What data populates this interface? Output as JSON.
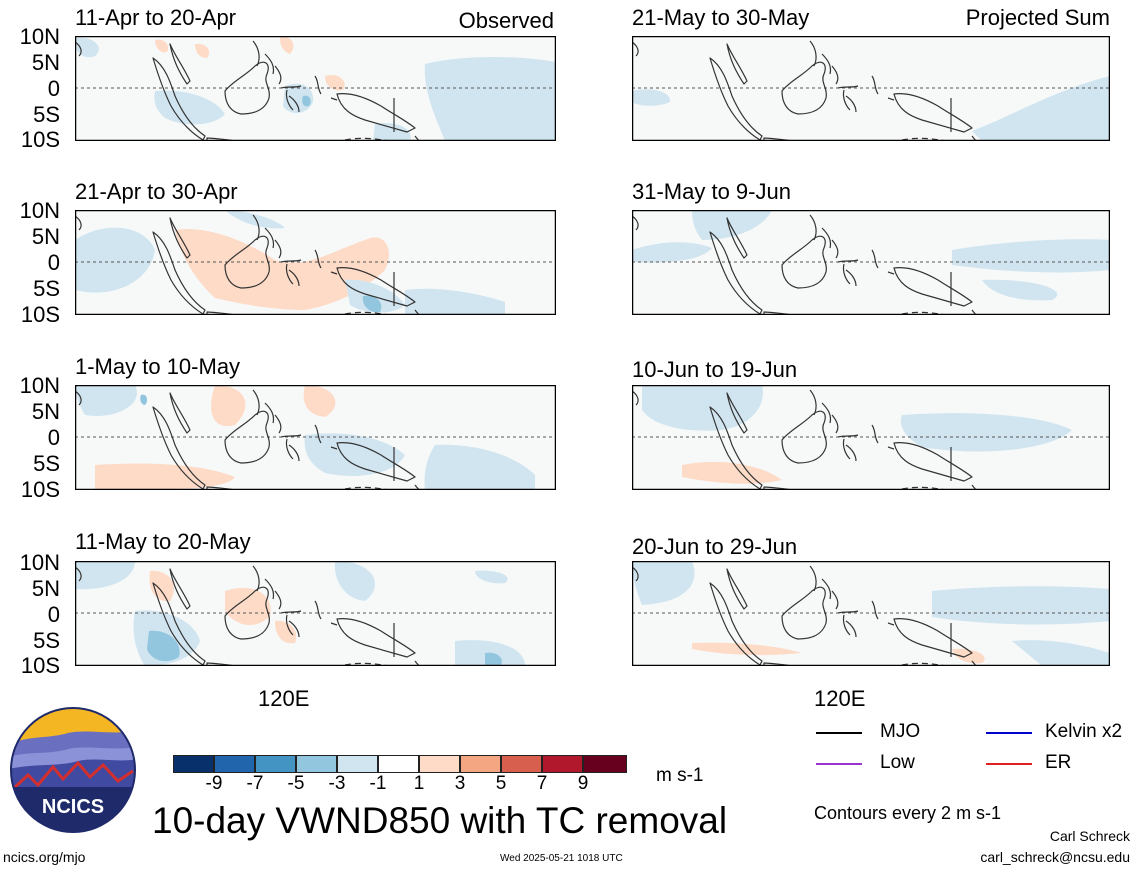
{
  "panels_left": [
    {
      "title": "11-Apr to 20-Apr",
      "tag": "Observed"
    },
    {
      "title": "21-Apr to 30-Apr",
      "tag": ""
    },
    {
      "title": "1-May to 10-May",
      "tag": ""
    },
    {
      "title": "11-May to 20-May",
      "tag": ""
    }
  ],
  "panels_right": [
    {
      "title": "21-May to 30-May",
      "tag": "Projected Sum"
    },
    {
      "title": "31-May to 9-Jun",
      "tag": ""
    },
    {
      "title": "10-Jun to 19-Jun",
      "tag": ""
    },
    {
      "title": "20-Jun to 29-Jun",
      "tag": ""
    }
  ],
  "lat_labels": [
    "10N",
    "5N",
    "0",
    "5S",
    "10S"
  ],
  "lon_label": "120E",
  "colorbar": {
    "colors": [
      "#08306b",
      "#2166ac",
      "#4393c3",
      "#92c5de",
      "#d1e5f0",
      "#ffffff",
      "#fddbc7",
      "#f4a582",
      "#d6604d",
      "#b2182b",
      "#67001f"
    ],
    "labels": [
      "-9",
      "-7",
      "-5",
      "-3",
      "-1",
      "1",
      "3",
      "5",
      "7",
      "9"
    ],
    "units": "m s-1"
  },
  "legend": [
    {
      "label": "MJO",
      "color": "#000000"
    },
    {
      "label": "Kelvin x2",
      "color": "#0000cc"
    },
    {
      "label": "Low",
      "color": "#9933cc"
    },
    {
      "label": "ER",
      "color": "#e02020"
    }
  ],
  "contours_note": "Contours every 2 m s-1",
  "main_title": "10-day VWND850 with TC removal",
  "logo_text": "NCICS",
  "footer": {
    "site": "ncics.org/mjo",
    "timestamp": "Wed 2025-05-21 1018 UTC",
    "author": "Carl Schreck",
    "email": "carl_schreck@ncsu.edu"
  }
}
